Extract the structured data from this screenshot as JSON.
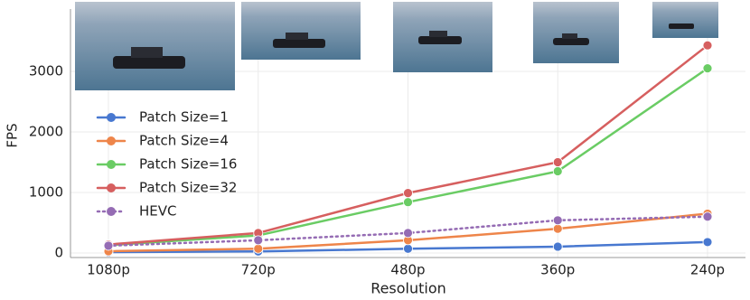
{
  "chart_data": {
    "type": "line",
    "xlabel": "Resolution",
    "ylabel": "FPS",
    "categories": [
      "1080p",
      "720p",
      "480p",
      "360p",
      "240p"
    ],
    "series": [
      {
        "name": "Patch Size=1",
        "color": "#4878d0",
        "values": [
          15,
          25,
          70,
          105,
          180
        ],
        "style": "solid"
      },
      {
        "name": "Patch Size=4",
        "color": "#ee854a",
        "values": [
          30,
          70,
          210,
          400,
          650
        ],
        "style": "solid"
      },
      {
        "name": "Patch Size=16",
        "color": "#6acc64",
        "values": [
          130,
          290,
          840,
          1350,
          3050
        ],
        "style": "solid"
      },
      {
        "name": "Patch Size=32",
        "color": "#d65f5f",
        "values": [
          140,
          330,
          990,
          1500,
          3430
        ],
        "style": "solid"
      },
      {
        "name": "HEVC",
        "color": "#956cb4",
        "values": [
          120,
          210,
          330,
          540,
          600
        ],
        "style": "dotted"
      }
    ],
    "ylim": [
      -75,
      4030
    ],
    "yticks": [
      0,
      1000,
      2000,
      3000
    ],
    "grid": true,
    "legend": "upper-left"
  }
}
